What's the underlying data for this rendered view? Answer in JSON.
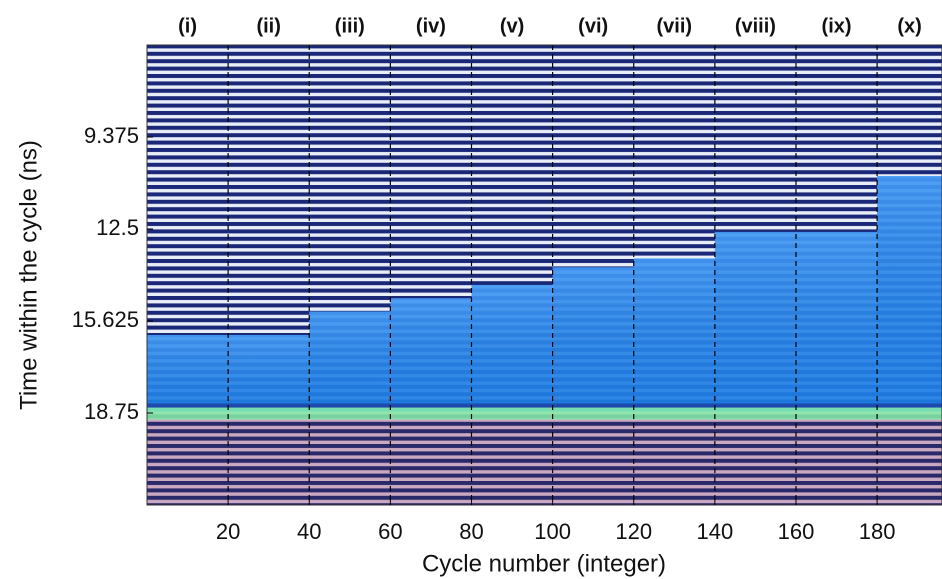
{
  "chart_data": {
    "type": "heatmap",
    "xlabel": "Cycle number (integer)",
    "ylabel": "Time within the cycle (ns)",
    "xlim": [
      0,
      196
    ],
    "xticks": [
      20,
      40,
      60,
      80,
      100,
      120,
      140,
      160,
      180
    ],
    "ylim": [
      6.25,
      21.875
    ],
    "yticks": [
      9.375,
      12.5,
      15.625,
      18.75
    ],
    "y_inverted": true,
    "dividers": [
      20,
      40,
      60,
      80,
      100,
      120,
      140,
      160,
      180
    ],
    "categories": [
      "(i)",
      "(ii)",
      "(iii)",
      "(iv)",
      "(v)",
      "(vi)",
      "(vii)",
      "(viii)",
      "(ix)",
      "(x)"
    ],
    "values": [
      16.1,
      16.1,
      15.3,
      14.85,
      14.4,
      13.8,
      13.5,
      12.6,
      12.6,
      10.7
    ],
    "baseline": 18.7,
    "color": "#1f86f2",
    "baseline_color": "#86f0a8"
  }
}
